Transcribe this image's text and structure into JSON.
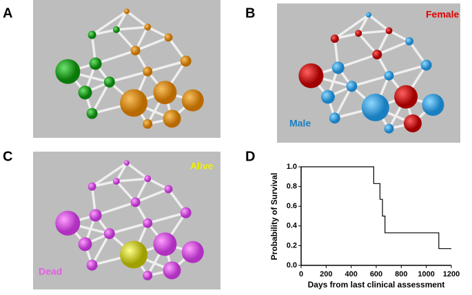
{
  "panels": [
    "A",
    "B",
    "C",
    "D"
  ],
  "network_labels": {
    "female": "Female",
    "male": "Male",
    "alive": "Alive",
    "dead": "Dead"
  },
  "chart_data": {
    "type": "line",
    "step": true,
    "xlabel": "Days from last clinical assessment",
    "ylabel": "Probability of Survival",
    "x": [
      0,
      580,
      580,
      630,
      630,
      650,
      650,
      670,
      670,
      1100,
      1100,
      1200
    ],
    "series": [
      {
        "color": "#000000",
        "values": [
          1,
          1,
          0.83,
          0.83,
          0.67,
          0.67,
          0.5,
          0.5,
          0.33,
          0.33,
          0.17,
          0.17
        ]
      }
    ],
    "xlim": [
      0,
      1200
    ],
    "xticks": [
      0,
      200,
      400,
      600,
      800,
      1000,
      1200
    ],
    "ylim": [
      0,
      1
    ],
    "yticks": [
      {
        "value": 0,
        "label": "0.0"
      },
      0.2,
      0.4,
      0.6,
      0.8,
      {
        "value": 1,
        "label": "1.0"
      }
    ]
  }
}
